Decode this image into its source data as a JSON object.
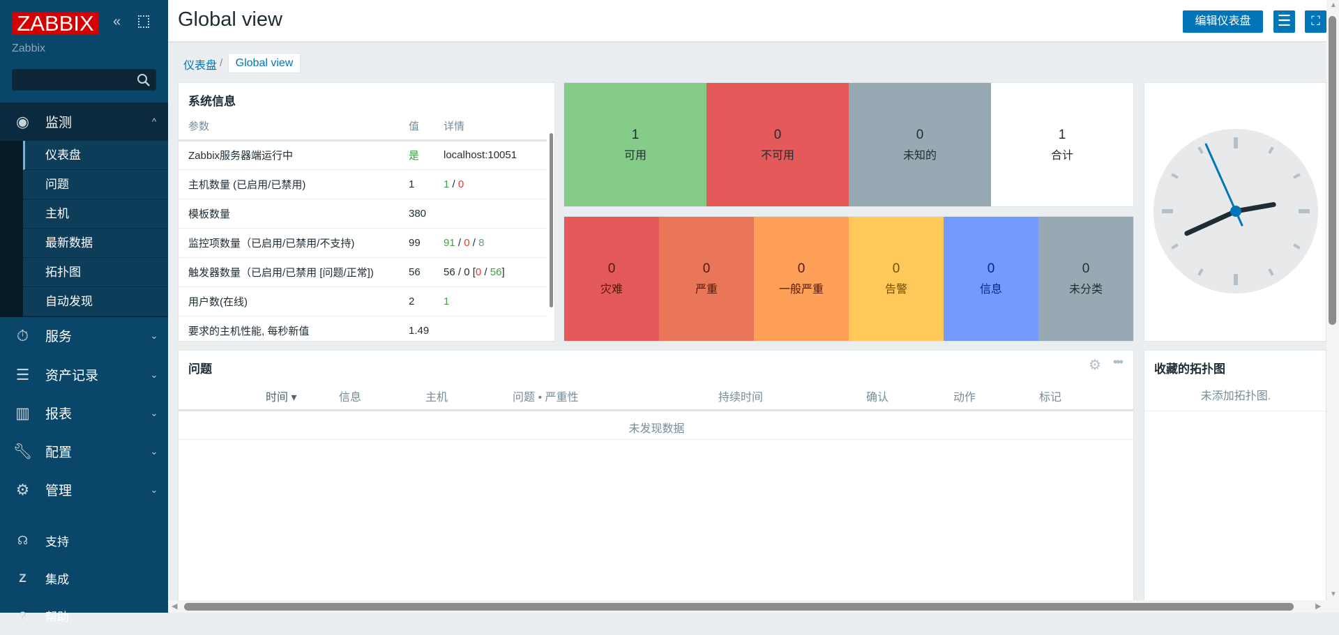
{
  "sidebar": {
    "logo": "ZABBIX",
    "server_name": "Zabbix",
    "search_placeholder": "",
    "menu": [
      {
        "label": "监测",
        "icon": "eye-icon",
        "expanded": true,
        "items": [
          "仪表盘",
          "问题",
          "主机",
          "最新数据",
          "拓扑图",
          "自动发现"
        ],
        "active": "仪表盘"
      },
      {
        "label": "服务",
        "icon": "stopwatch-icon"
      },
      {
        "label": "资产记录",
        "icon": "list-icon"
      },
      {
        "label": "报表",
        "icon": "bar-chart-icon"
      },
      {
        "label": "配置",
        "icon": "wrench-icon"
      },
      {
        "label": "管理",
        "icon": "gear-icon"
      }
    ],
    "bottom": [
      {
        "label": "支持",
        "icon": "headset-icon"
      },
      {
        "label": "集成",
        "icon": "z-icon"
      },
      {
        "label": "帮助",
        "icon": "help-icon"
      }
    ]
  },
  "header": {
    "title": "Global view",
    "edit_button": "编辑仪表盘"
  },
  "breadcrumb": {
    "parent": "仪表盘",
    "current": "Global view"
  },
  "system_info": {
    "title": "系统信息",
    "columns": [
      "参数",
      "值",
      "详情"
    ],
    "rows": [
      {
        "param": "Zabbix服务器端运行中",
        "value": "是",
        "details": "localhost:10051"
      },
      {
        "param": "主机数量 (已启用/已禁用)",
        "value": "1",
        "d": [
          "1",
          "0"
        ]
      },
      {
        "param": "模板数量",
        "value": "380"
      },
      {
        "param": "监控项数量（已启用/已禁用/不支持)",
        "value": "99",
        "d": [
          "91",
          "0",
          "8"
        ]
      },
      {
        "param": "触发器数量（已启用/已禁用 [问题/正常])",
        "value": "56",
        "d": [
          "56",
          "0",
          "0",
          "56"
        ]
      },
      {
        "param": "用户数(在线)",
        "value": "2",
        "d": [
          "1"
        ]
      },
      {
        "param": "要求的主机性能, 每秒新值",
        "value": "1.49"
      }
    ]
  },
  "host_availability": [
    {
      "count": "1",
      "label": "可用",
      "color": "#86cc89"
    },
    {
      "count": "0",
      "label": "不可用",
      "color": "#e45959"
    },
    {
      "count": "0",
      "label": "未知的",
      "color": "#97aab3"
    },
    {
      "count": "1",
      "label": "合计",
      "color": "#ffffff"
    }
  ],
  "problems_by_severity": [
    {
      "count": "0",
      "label": "灾难",
      "color": "#e45959",
      "text": "#52190b"
    },
    {
      "count": "0",
      "label": "严重",
      "color": "#e97659",
      "text": "#52190b"
    },
    {
      "count": "0",
      "label": "一般严重",
      "color": "#ffa059",
      "text": "#52190b"
    },
    {
      "count": "0",
      "label": "告警",
      "color": "#ffc859",
      "text": "#734d00"
    },
    {
      "count": "0",
      "label": "信息",
      "color": "#7499ff",
      "text": "#00268e"
    },
    {
      "count": "0",
      "label": "未分类",
      "color": "#97aab3",
      "text": "#1f2c33"
    }
  ],
  "clock": {
    "hours": 2,
    "minutes": 40,
    "seconds": 56
  },
  "problems": {
    "title": "问题",
    "columns": [
      "时间 ▾",
      "信息",
      "主机",
      "问题 • 严重性",
      "持续时间",
      "确认",
      "动作",
      "标记"
    ],
    "empty": "未发现数据"
  },
  "favorite_maps": {
    "title": "收藏的拓扑图",
    "empty": "未添加拓扑图."
  }
}
